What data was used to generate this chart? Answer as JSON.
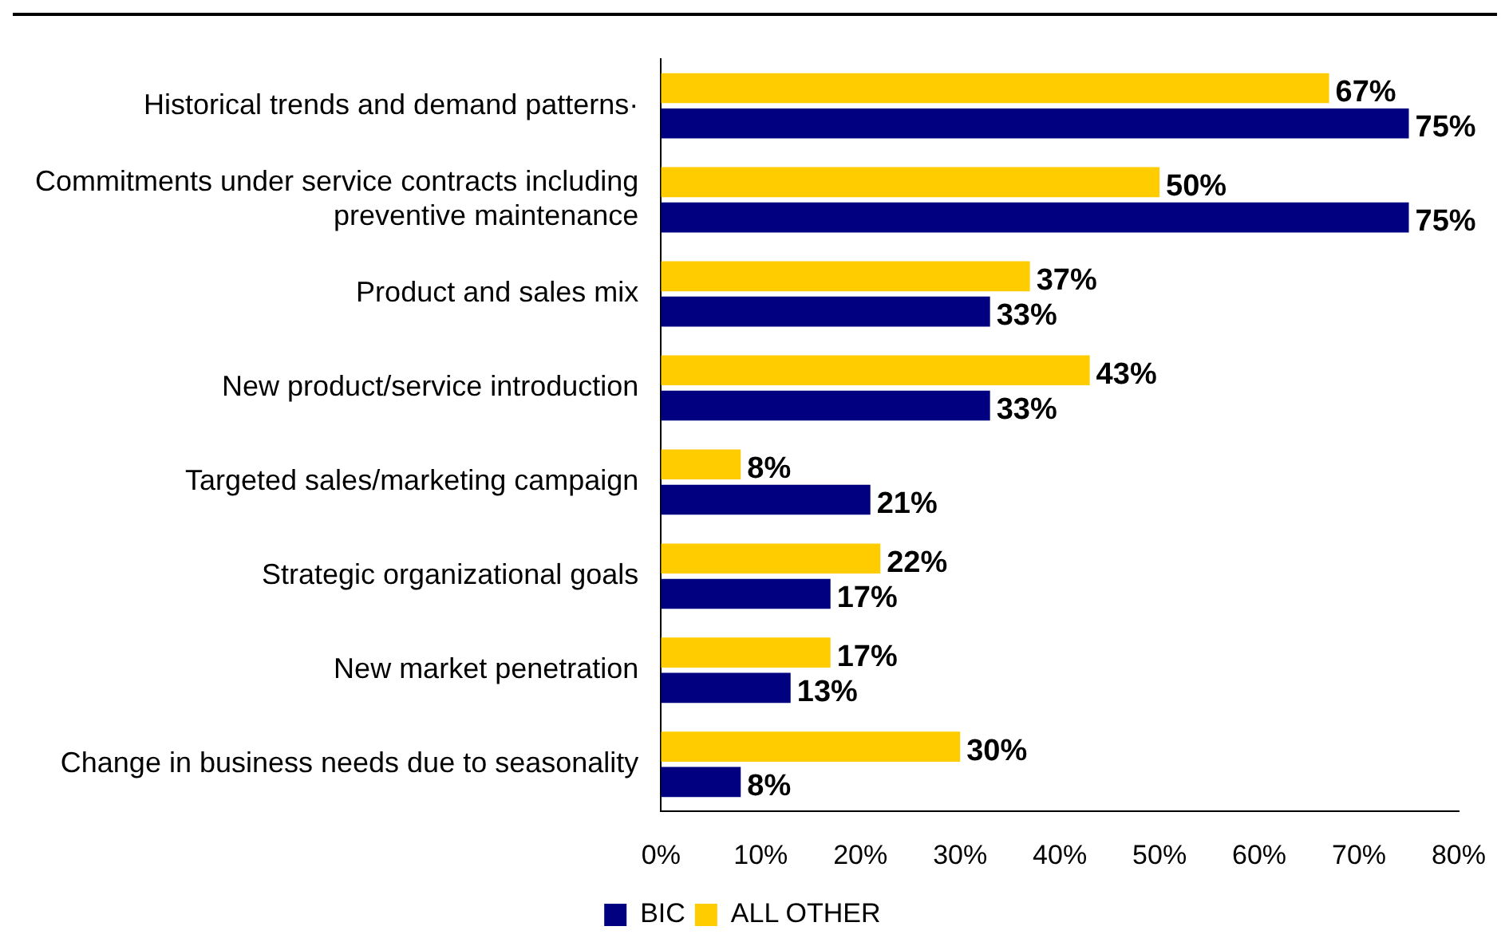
{
  "chart_data": {
    "type": "bar",
    "orientation": "horizontal",
    "categories": [
      "Historical trends and demand patterns·",
      "Commitments under service contracts including preventive maintenance",
      "Product and sales mix",
      "New product/service introduction",
      "Targeted sales/marketing campaign",
      "Strategic organizational goals",
      "New market penetration",
      "Change in business needs due to seasonality"
    ],
    "series": [
      {
        "name": "BIC",
        "color": "#000080",
        "values": [
          75,
          75,
          33,
          33,
          21,
          17,
          13,
          8
        ],
        "value_labels": [
          "75%",
          "75%",
          "33%",
          "33%",
          "21%",
          "17%",
          "13%",
          "8%"
        ]
      },
      {
        "name": "ALL OTHER",
        "color": "#ffcc00",
        "values": [
          67,
          50,
          37,
          43,
          8,
          22,
          17,
          30
        ],
        "value_labels": [
          "67%",
          "50%",
          "37%",
          "43%",
          "8%",
          "22%",
          "17%",
          "30%"
        ]
      }
    ],
    "xlim": [
      0,
      80
    ],
    "xticks": [
      {
        "value": 0,
        "label": "0%"
      },
      {
        "value": 10,
        "label": "10%"
      },
      {
        "value": 20,
        "label": "20%"
      },
      {
        "value": 30,
        "label": "30%"
      },
      {
        "value": 40,
        "label": "40%"
      },
      {
        "value": 50,
        "label": "50%"
      },
      {
        "value": 60,
        "label": "60%"
      },
      {
        "value": 70,
        "label": "70%"
      },
      {
        "value": 80,
        "label": "80%"
      }
    ],
    "grid": false,
    "legend": "bottom"
  }
}
